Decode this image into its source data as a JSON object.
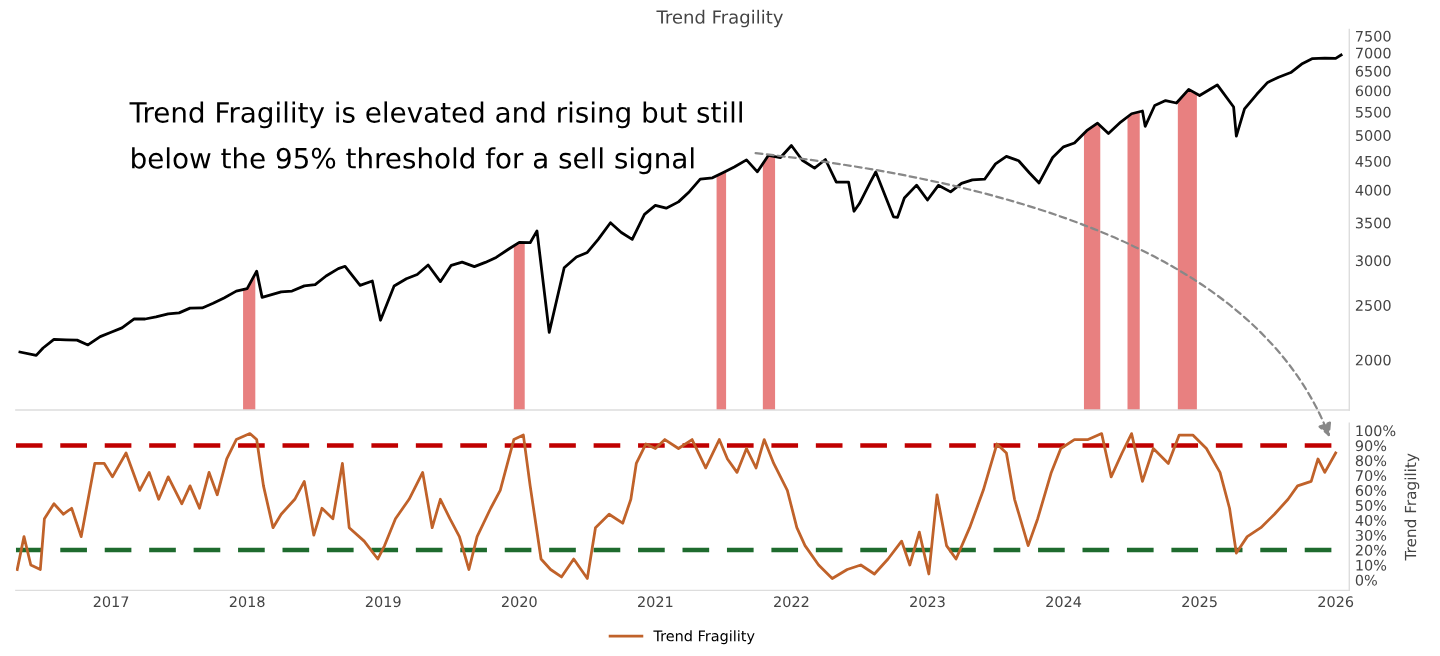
{
  "chart_data": [
    {
      "type": "line",
      "title": "Trend Fragility",
      "log": "y",
      "tick_labels": "y",
      "xlim": [
        2016.3,
        2026.1
      ],
      "ylim": [
        1630,
        7700
      ],
      "yticks": [
        2000,
        2500,
        3000,
        3500,
        4000,
        4500,
        5000,
        5500,
        6000,
        6500,
        7000,
        7500
      ],
      "series": [
        {
          "color": "#000000",
          "x": [
            2016.33,
            2016.45,
            2016.5,
            2016.58,
            2016.67,
            2016.75,
            2016.83,
            2016.92,
            2017.0,
            2017.08,
            2017.17,
            2017.25,
            2017.33,
            2017.42,
            2017.5,
            2017.58,
            2017.67,
            2017.75,
            2017.83,
            2017.92,
            2018.0,
            2018.07,
            2018.11,
            2018.25,
            2018.33,
            2018.42,
            2018.5,
            2018.58,
            2018.67,
            2018.72,
            2018.83,
            2018.92,
            2018.98,
            2019.08,
            2019.17,
            2019.25,
            2019.33,
            2019.42,
            2019.5,
            2019.58,
            2019.67,
            2019.75,
            2019.83,
            2019.92,
            2020.0,
            2020.08,
            2020.13,
            2020.22,
            2020.33,
            2020.42,
            2020.5,
            2020.58,
            2020.67,
            2020.75,
            2020.83,
            2020.92,
            2021.0,
            2021.08,
            2021.17,
            2021.25,
            2021.33,
            2021.42,
            2021.5,
            2021.58,
            2021.67,
            2021.75,
            2021.83,
            2021.92,
            2022.0,
            2022.08,
            2022.17,
            2022.25,
            2022.33,
            2022.42,
            2022.46,
            2022.5,
            2022.58,
            2022.62,
            2022.75,
            2022.78,
            2022.83,
            2022.92,
            2023.0,
            2023.08,
            2023.17,
            2023.25,
            2023.33,
            2023.42,
            2023.5,
            2023.58,
            2023.67,
            2023.75,
            2023.82,
            2023.92,
            2024.0,
            2024.08,
            2024.17,
            2024.25,
            2024.33,
            2024.42,
            2024.5,
            2024.58,
            2024.6,
            2024.67,
            2024.75,
            2024.83,
            2024.92,
            2025.0,
            2025.08,
            2025.13,
            2025.25,
            2025.27,
            2025.33,
            2025.42,
            2025.5,
            2025.58,
            2025.67,
            2025.75,
            2025.83,
            2025.92,
            2026.0,
            2026.04
          ],
          "values": [
            2065,
            2037,
            2099,
            2174,
            2171,
            2168,
            2126,
            2199,
            2239,
            2279,
            2364,
            2363,
            2384,
            2412,
            2423,
            2470,
            2472,
            2519,
            2575,
            2648,
            2674,
            2873,
            2581,
            2640,
            2648,
            2705,
            2718,
            2816,
            2902,
            2930,
            2711,
            2760,
            2351,
            2704,
            2784,
            2834,
            2946,
            2752,
            2942,
            2980,
            2926,
            2977,
            3038,
            3141,
            3231,
            3226,
            3386,
            2237,
            2912,
            3044,
            3100,
            3271,
            3500,
            3363,
            3270,
            3622,
            3756,
            3714,
            3811,
            3973,
            4181,
            4204,
            4298,
            4395,
            4523,
            4308,
            4605,
            4567,
            4797,
            4516,
            4374,
            4530,
            4132,
            4132,
            3667,
            3785,
            4130,
            4305,
            3586,
            3577,
            3872,
            4080,
            3840,
            4077,
            3970,
            4109,
            4169,
            4180,
            4450,
            4589,
            4508,
            4288,
            4117,
            4568,
            4770,
            4846,
            5096,
            5254,
            5036,
            5278,
            5460,
            5522,
            5186,
            5648,
            5762,
            5705,
            6032,
            5882,
            6040,
            6144,
            5612,
            4983,
            5569,
            5912,
            6205,
            6339,
            6460,
            6688,
            6840,
            6849,
            6845,
            6940
          ]
        }
      ],
      "bands": [
        {
          "axis": "x",
          "from": 2017.97,
          "to": 2018.06,
          "color": "#e88080"
        },
        {
          "axis": "x",
          "from": 2019.96,
          "to": 2020.04,
          "color": "#e88080"
        },
        {
          "axis": "x",
          "from": 2021.45,
          "to": 2021.52,
          "color": "#e88080"
        },
        {
          "axis": "x",
          "from": 2021.79,
          "to": 2021.88,
          "color": "#e88080"
        },
        {
          "axis": "x",
          "from": 2024.15,
          "to": 2024.27,
          "color": "#e88080"
        },
        {
          "axis": "x",
          "from": 2024.47,
          "to": 2024.56,
          "color": "#e88080"
        },
        {
          "axis": "x",
          "from": 2024.84,
          "to": 2024.98,
          "color": "#e88080"
        }
      ]
    },
    {
      "type": "line",
      "ylabel": "Trend Fragility",
      "legend": "bottom",
      "xlim": [
        2016.3,
        2026.1
      ],
      "xticks": [
        2017,
        2018,
        2019,
        2020,
        2021,
        2022,
        2023,
        2024,
        2025,
        2026
      ],
      "ylim": [
        -7,
        105
      ],
      "yticks": [
        {
          "value": 0,
          "label": "0%"
        },
        {
          "value": 10,
          "label": "10%"
        },
        {
          "value": 20,
          "label": "20%"
        },
        {
          "value": 30,
          "label": "30%"
        },
        {
          "value": 40,
          "label": "40%"
        },
        {
          "value": 50,
          "label": "50%"
        },
        {
          "value": 60,
          "label": "60%"
        },
        {
          "value": 70,
          "label": "70%"
        },
        {
          "value": 80,
          "label": "80%"
        },
        {
          "value": 90,
          "label": "90%"
        },
        {
          "value": 100,
          "label": "100%"
        }
      ],
      "series": [
        {
          "name": "Trend Fragility",
          "color": "#c0622a",
          "x": [
            2016.31,
            2016.36,
            2016.41,
            2016.48,
            2016.51,
            2016.58,
            2016.65,
            2016.71,
            2016.78,
            2016.88,
            2016.95,
            2017.01,
            2017.11,
            2017.21,
            2017.28,
            2017.35,
            2017.42,
            2017.52,
            2017.58,
            2017.65,
            2017.72,
            2017.78,
            2017.85,
            2017.92,
            2018.02,
            2018.07,
            2018.12,
            2018.19,
            2018.25,
            2018.35,
            2018.42,
            2018.49,
            2018.55,
            2018.63,
            2018.7,
            2018.75,
            2018.86,
            2018.96,
            2019.01,
            2019.09,
            2019.19,
            2019.29,
            2019.36,
            2019.42,
            2019.49,
            2019.56,
            2019.63,
            2019.69,
            2019.79,
            2019.86,
            2019.96,
            2020.03,
            2020.08,
            2020.16,
            2020.23,
            2020.31,
            2020.4,
            2020.5,
            2020.56,
            2020.66,
            2020.76,
            2020.82,
            2020.86,
            2020.93,
            2021.0,
            2021.07,
            2021.17,
            2021.27,
            2021.37,
            2021.47,
            2021.53,
            2021.6,
            2021.67,
            2021.74,
            2021.8,
            2021.87,
            2021.97,
            2022.04,
            2022.1,
            2022.2,
            2022.3,
            2022.41,
            2022.51,
            2022.61,
            2022.71,
            2022.81,
            2022.87,
            2022.94,
            2023.01,
            2023.07,
            2023.14,
            2023.21,
            2023.31,
            2023.41,
            2023.51,
            2023.58,
            2023.64,
            2023.74,
            2023.81,
            2023.91,
            2023.98,
            2024.08,
            2024.18,
            2024.28,
            2024.35,
            2024.43,
            2024.5,
            2024.58,
            2024.66,
            2024.77,
            2024.85,
            2024.95,
            2025.05,
            2025.15,
            2025.22,
            2025.27,
            2025.35,
            2025.45,
            2025.55,
            2025.65,
            2025.72,
            2025.82,
            2025.87,
            2025.92,
            2026.0
          ],
          "values": [
            7,
            29,
            10,
            7,
            41,
            51,
            44,
            48,
            29,
            78,
            78,
            69,
            85,
            60,
            72,
            54,
            69,
            51,
            63,
            48,
            72,
            57,
            81,
            94,
            98,
            94,
            63,
            35,
            44,
            54,
            66,
            30,
            48,
            41,
            78,
            35,
            26,
            14,
            23,
            41,
            54,
            72,
            35,
            54,
            41,
            29,
            7,
            29,
            48,
            60,
            94,
            97,
            63,
            14,
            7,
            2,
            14,
            1,
            35,
            44,
            38,
            54,
            78,
            91,
            88,
            94,
            88,
            94,
            75,
            94,
            81,
            72,
            88,
            75,
            94,
            78,
            60,
            35,
            23,
            10,
            1,
            7,
            10,
            4,
            14,
            26,
            10,
            32,
            4,
            57,
            23,
            14,
            35,
            60,
            91,
            85,
            54,
            23,
            41,
            72,
            88,
            94,
            94,
            98,
            69,
            85,
            98,
            66,
            88,
            78,
            97,
            97,
            88,
            72,
            48,
            18,
            29,
            35,
            44,
            54,
            63,
            66,
            81,
            72,
            85
          ]
        }
      ],
      "ref_lines": [
        {
          "axis": "y",
          "value": 90,
          "color": "#c00000",
          "line_style": "dashed"
        },
        {
          "axis": "y",
          "value": 20,
          "color": "#1e6b2e",
          "line_style": "dashed"
        }
      ],
      "annotations": [
        {
          "text": "Trend Fragility is elevated and rising but still\nbelow the 95% threshold for a sell signal",
          "x": 2025.97,
          "y": 92
        }
      ]
    }
  ]
}
